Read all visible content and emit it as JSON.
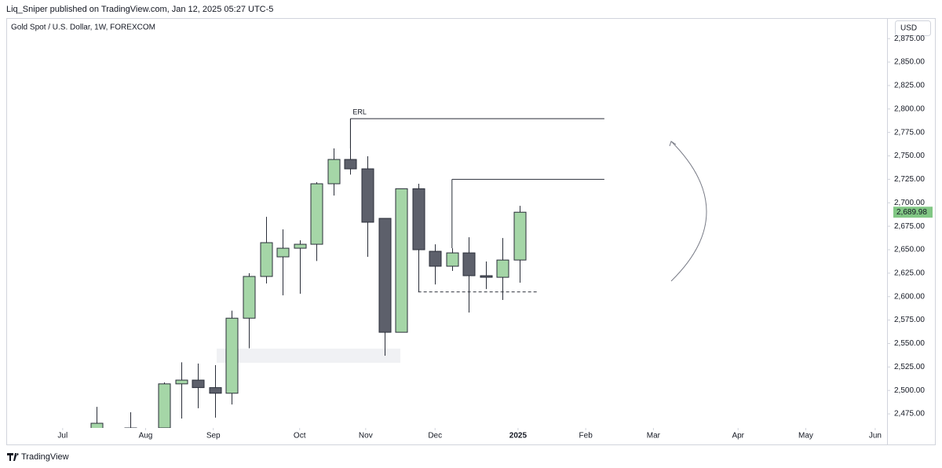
{
  "header": "Liq_Sniper published on TradingView.com, Jan 12, 2025 05:27 UTC-5",
  "footer": "TradingView",
  "chart_data": {
    "type": "candlestick",
    "title": "Gold Spot / U.S. Dollar, 1W, FOREXCOM",
    "currency": "USD",
    "up_color": "#a5d6a7",
    "down_color": "#5d606b",
    "border_color": "#2a2e39",
    "x": [
      0,
      2,
      4,
      5,
      6,
      7,
      8,
      9,
      10,
      11,
      12,
      13,
      14,
      15,
      16,
      17,
      18,
      19,
      20,
      21,
      22,
      23,
      24,
      25
    ],
    "open": [
      2455,
      2450,
      2460,
      2507,
      2511,
      2503,
      2497,
      2577,
      2621.5,
      2642.4,
      2651.6,
      2655.8,
      2720.3,
      2746.2,
      2736.2,
      2683.4,
      2562,
      2715,
      2648.3,
      2632.4,
      2646.6,
      2622.3,
      2620.6,
      2639
    ],
    "high": [
      2482.5,
      2476.7,
      2508.5,
      2530,
      2528.6,
      2527,
      2585,
      2625,
      2685,
      2671.7,
      2660,
      2722,
      2758,
      2789.7,
      2749.6,
      2683.4,
      2715,
      2720.3,
      2655.8,
      2651.6,
      2663.3,
      2637.4,
      2662.5,
      2696.8
    ],
    "low": [
      2440,
      2440,
      2455,
      2470,
      2481,
      2471,
      2485,
      2545,
      2614,
      2601.4,
      2603,
      2638,
      2707.7,
      2730,
      2642.4,
      2537,
      2562,
      2604.8,
      2613,
      2627.4,
      2583,
      2608,
      2596.4,
      2614.8
    ],
    "close": [
      2465,
      2460,
      2507,
      2511,
      2503,
      2497,
      2577,
      2621.5,
      2657.5,
      2651.6,
      2655.8,
      2720.3,
      2746.2,
      2736.2,
      2679.3,
      2562,
      2715,
      2650,
      2632.4,
      2646.6,
      2622.3,
      2620.6,
      2639,
      2689.98
    ],
    "last_price_label": "2,689.98",
    "xlim": [
      -5.33,
      46.7
    ],
    "xticks": [
      {
        "value": -2.0,
        "label": "Jul"
      },
      {
        "value": 2.9,
        "label": "Aug"
      },
      {
        "value": 6.9,
        "label": "Sep"
      },
      {
        "value": 12.0,
        "label": "Oct"
      },
      {
        "value": 15.9,
        "label": "Nov"
      },
      {
        "value": 20.0,
        "label": "Dec"
      },
      {
        "value": 24.9,
        "label": "2025"
      },
      {
        "value": 28.9,
        "label": "Feb"
      },
      {
        "value": 32.9,
        "label": "Mar"
      },
      {
        "value": 37.9,
        "label": "Apr"
      },
      {
        "value": 41.9,
        "label": "May"
      },
      {
        "value": 46.0,
        "label": "Jun"
      }
    ],
    "ylim": [
      2460,
      2878.5
    ],
    "yticks": [
      {
        "value": 2475,
        "label": "2,475.00"
      },
      {
        "value": 2500,
        "label": "2,500.00"
      },
      {
        "value": 2525,
        "label": "2,525.00"
      },
      {
        "value": 2550,
        "label": "2,550.00"
      },
      {
        "value": 2575,
        "label": "2,575.00"
      },
      {
        "value": 2600,
        "label": "2,600.00"
      },
      {
        "value": 2625,
        "label": "2,625.00"
      },
      {
        "value": 2650,
        "label": "2,650.00"
      },
      {
        "value": 2675,
        "label": "2,675.00"
      },
      {
        "value": 2700,
        "label": "2,700.00"
      },
      {
        "value": 2725,
        "label": "2,725.00"
      },
      {
        "value": 2750,
        "label": "2,750.00"
      },
      {
        "value": 2775,
        "label": "2,775.00"
      },
      {
        "value": 2800,
        "label": "2,800.00"
      },
      {
        "value": 2825,
        "label": "2,825.00"
      },
      {
        "value": 2850,
        "label": "2,850.00"
      },
      {
        "value": 2875,
        "label": "2,875.00"
      }
    ],
    "drawings": {
      "erl": {
        "label": "ERL",
        "level": 2789.7,
        "x_start": 15,
        "x_end": 30,
        "drop_to": 2758
      },
      "high_line": {
        "level": 2725,
        "x_start": 21,
        "x_end": 30,
        "drop_to": 2651.6
      },
      "low_line": {
        "level": 2605,
        "x_start": 19,
        "x_end": 26.1
      },
      "zone": {
        "top": 2544.6,
        "bottom": 2529.5,
        "x_start": 7.1,
        "x_end": 17.95
      }
    }
  }
}
